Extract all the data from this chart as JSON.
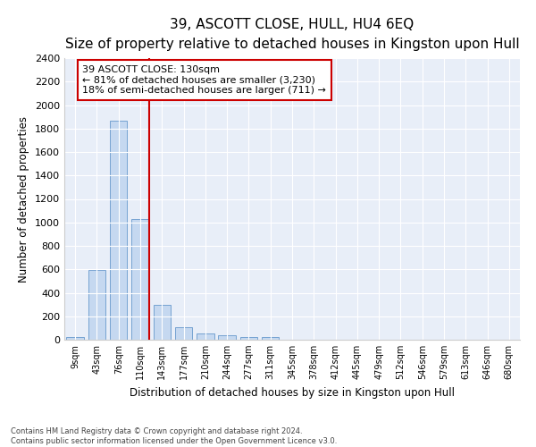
{
  "title": "39, ASCOTT CLOSE, HULL, HU4 6EQ",
  "subtitle": "Size of property relative to detached houses in Kingston upon Hull",
  "xlabel": "Distribution of detached houses by size in Kingston upon Hull",
  "ylabel": "Number of detached properties",
  "footnote1": "Contains HM Land Registry data © Crown copyright and database right 2024.",
  "footnote2": "Contains public sector information licensed under the Open Government Licence v3.0.",
  "bar_color": "#c5d8f0",
  "bar_edgecolor": "#6699cc",
  "background_color": "#e8eef8",
  "categories": [
    "9sqm",
    "43sqm",
    "76sqm",
    "110sqm",
    "143sqm",
    "177sqm",
    "210sqm",
    "244sqm",
    "277sqm",
    "311sqm",
    "345sqm",
    "378sqm",
    "412sqm",
    "445sqm",
    "479sqm",
    "512sqm",
    "546sqm",
    "579sqm",
    "613sqm",
    "646sqm",
    "680sqm"
  ],
  "values": [
    20,
    595,
    1870,
    1025,
    295,
    110,
    50,
    35,
    25,
    20,
    0,
    0,
    0,
    0,
    0,
    0,
    0,
    0,
    0,
    0,
    0
  ],
  "red_line_bin_index": 3,
  "red_line_color": "#cc0000",
  "annotation_title": "39 ASCOTT CLOSE: 130sqm",
  "annotation_line1": "← 81% of detached houses are smaller (3,230)",
  "annotation_line2": "18% of semi-detached houses are larger (711) →",
  "ylim_max": 2400,
  "ytick_step": 200,
  "title_fontsize": 11,
  "subtitle_fontsize": 9
}
